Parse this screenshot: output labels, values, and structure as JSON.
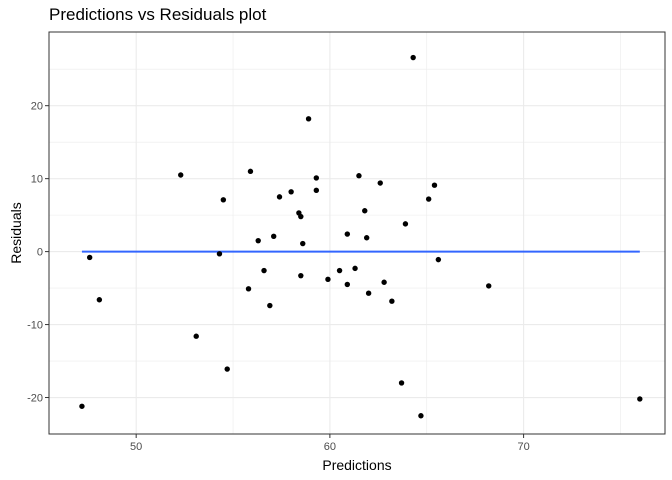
{
  "chart_data": {
    "type": "scatter",
    "title": "Predictions vs Residuals plot",
    "xlabel": "Predictions",
    "ylabel": "Residuals",
    "xlim": [
      45.5,
      77.3
    ],
    "ylim": [
      -25.0,
      30.1
    ],
    "x_ticks": [
      50,
      60,
      70
    ],
    "x_tick_labels": [
      "50",
      "60",
      "70"
    ],
    "y_ticks": [
      -20,
      -10,
      0,
      10,
      20
    ],
    "y_tick_labels": [
      "-20",
      "-10",
      "0",
      "10",
      "20"
    ],
    "grid": true,
    "point_color": "#000000",
    "line_color": "#3366ff",
    "reference_line": {
      "y": 0,
      "x_from": 47.2,
      "x_to": 76.0
    },
    "points": [
      {
        "x": 47.2,
        "y": -21.2
      },
      {
        "x": 47.6,
        "y": -0.8
      },
      {
        "x": 48.1,
        "y": -6.6
      },
      {
        "x": 52.3,
        "y": 10.5
      },
      {
        "x": 53.1,
        "y": -11.6
      },
      {
        "x": 54.3,
        "y": -0.3
      },
      {
        "x": 54.5,
        "y": 7.1
      },
      {
        "x": 54.7,
        "y": -16.1
      },
      {
        "x": 55.8,
        "y": -5.1
      },
      {
        "x": 55.9,
        "y": 11.0
      },
      {
        "x": 56.3,
        "y": 1.5
      },
      {
        "x": 56.6,
        "y": -2.6
      },
      {
        "x": 56.9,
        "y": -7.4
      },
      {
        "x": 57.1,
        "y": 2.1
      },
      {
        "x": 57.4,
        "y": 7.5
      },
      {
        "x": 58.0,
        "y": 8.2
      },
      {
        "x": 58.4,
        "y": 5.3
      },
      {
        "x": 58.5,
        "y": 4.8
      },
      {
        "x": 58.5,
        "y": -3.3
      },
      {
        "x": 58.6,
        "y": 1.1
      },
      {
        "x": 58.9,
        "y": 18.2
      },
      {
        "x": 59.3,
        "y": 10.1
      },
      {
        "x": 59.3,
        "y": 8.4
      },
      {
        "x": 59.9,
        "y": -3.8
      },
      {
        "x": 60.5,
        "y": -2.6
      },
      {
        "x": 60.9,
        "y": -4.5
      },
      {
        "x": 60.9,
        "y": 2.4
      },
      {
        "x": 61.3,
        "y": -2.3
      },
      {
        "x": 61.5,
        "y": 10.4
      },
      {
        "x": 61.8,
        "y": 5.6
      },
      {
        "x": 61.9,
        "y": 1.9
      },
      {
        "x": 62.0,
        "y": -5.7
      },
      {
        "x": 62.6,
        "y": 9.4
      },
      {
        "x": 62.8,
        "y": -4.2
      },
      {
        "x": 63.2,
        "y": -6.8
      },
      {
        "x": 63.7,
        "y": -18.0
      },
      {
        "x": 63.9,
        "y": 3.8
      },
      {
        "x": 64.3,
        "y": 26.6
      },
      {
        "x": 64.7,
        "y": -22.5
      },
      {
        "x": 65.1,
        "y": 7.2
      },
      {
        "x": 65.4,
        "y": 9.1
      },
      {
        "x": 65.6,
        "y": -1.1
      },
      {
        "x": 68.2,
        "y": -4.7
      },
      {
        "x": 76.0,
        "y": -20.2
      }
    ]
  }
}
